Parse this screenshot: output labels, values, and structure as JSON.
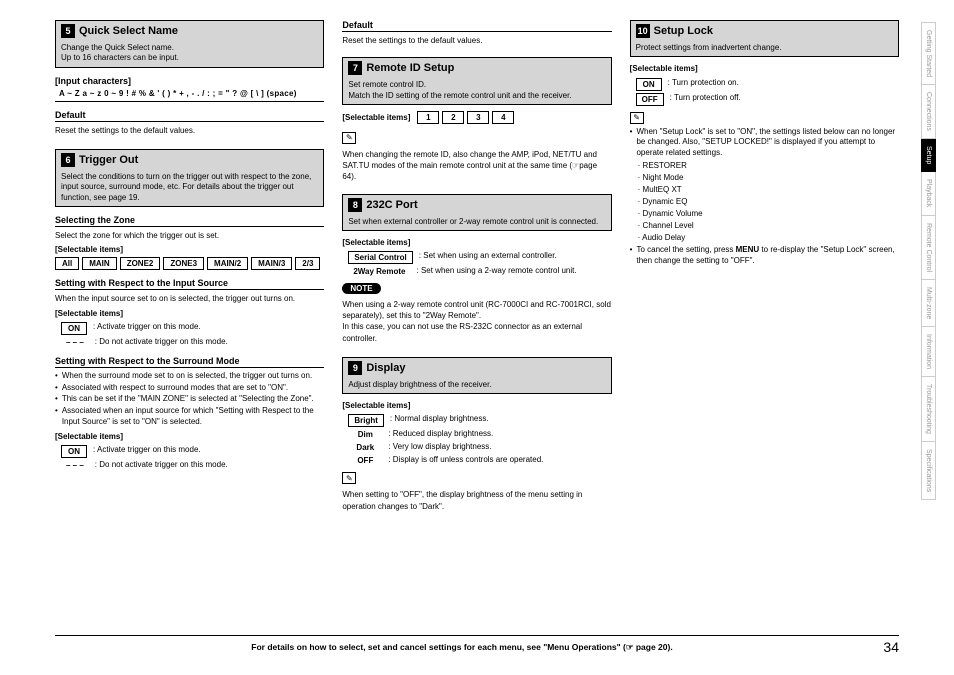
{
  "page_number": "34",
  "footer_text": "For details on how to select, set and cancel settings for each menu, see \"Menu Operations\" (☞ page 20).",
  "side_tabs": [
    "Getting Started",
    "Connections",
    "Setup",
    "Playback",
    "Remote Control",
    "Multi-zone",
    "Information",
    "Troubleshooting",
    "Specifications"
  ],
  "active_tab_index": 2,
  "col1": {
    "s5": {
      "num": "5",
      "title": "Quick Select Name",
      "desc": "Change the Quick Select name.\nUp to 16 characters can be input.",
      "input_chars_label": "[Input characters]",
      "input_chars": "A ~ Z   a ~ z   0 ~ 9   ! # % & ' ( ) * + , - . / : ; = \" ? @ [ \\ ] (space)",
      "default_label": "Default",
      "default_text": "Reset the settings to the default values."
    },
    "s6": {
      "num": "6",
      "title": "Trigger Out",
      "desc": "Select the conditions to turn on the trigger out with respect to the zone, input source, surround mode, etc. For details about the trigger out function, see page 19.",
      "zone_heading": "Selecting the Zone",
      "zone_text": "Select the zone for which the trigger out is set.",
      "sel_label": "[Selectable items]",
      "zone_items": [
        "All",
        "MAIN",
        "ZONE2",
        "ZONE3",
        "MAIN/2",
        "MAIN/3",
        "2/3"
      ],
      "input_heading": "Setting with Respect to the Input Source",
      "input_text": "When the input source set to on is selected, the trigger out turns on.",
      "on_label": "ON",
      "on_text": ": Activate trigger on this mode.",
      "dash_label": "– – –",
      "dash_text": ": Do not activate trigger on this mode.",
      "surround_heading": "Setting with Respect to the Surround Mode",
      "surround_bullets": [
        "When the surround mode set to on is selected, the trigger out turns on.",
        "Associated with respect to surround modes that are set to \"ON\".",
        "This can be set if the \"MAIN ZONE\" is selected at \"Selecting the Zone\".",
        "Associated when an input source for which \"Setting with Respect to the Input Source\" is set to \"ON\" is selected."
      ]
    }
  },
  "col2": {
    "default_label": "Default",
    "default_text": "Reset the settings to the default values.",
    "s7": {
      "num": "7",
      "title": "Remote ID Setup",
      "desc": "Set remote control ID.\nMatch the ID setting of the remote control unit and the receiver.",
      "sel_label": "[Selectable items]",
      "items": [
        "1",
        "2",
        "3",
        "4"
      ],
      "note": "When changing the remote ID, also change the AMP, iPod, NET/TU and SAT.TU modes of the main remote control unit at the same time (☞page 64)."
    },
    "s8": {
      "num": "8",
      "title": "232C Port",
      "desc": "Set when external controller or 2-way remote control unit is connected.",
      "sel_label": "[Selectable items]",
      "serial_label": "Serial Control",
      "serial_text": ":  Set when using an external controller.",
      "tworay_label": "2Way Remote",
      "tworay_text": ":  Set when using a 2-way remote control unit.",
      "note_label": "NOTE",
      "note_text": "When using a 2-way remote control unit (RC-7000CI and RC-7001RCI, sold separately), set this to \"2Way Remote\".\nIn this case, you can not use the RS-232C connector as an external controller."
    },
    "s9": {
      "num": "9",
      "title": "Display",
      "desc": "Adjust display brightness of the receiver.",
      "sel_label": "[Selectable items]",
      "rows": [
        {
          "k": "Bright",
          "v": ":  Normal display brightness."
        },
        {
          "k": "Dim",
          "v": ":  Reduced display brightness."
        },
        {
          "k": "Dark",
          "v": ":  Very low display brightness."
        },
        {
          "k": "OFF",
          "v": ":  Display is off unless controls are operated."
        }
      ],
      "note": "When setting to \"OFF\", the display brightness of the menu setting in operation changes to \"Dark\"."
    }
  },
  "col3": {
    "s10": {
      "num": "10",
      "title": "Setup Lock",
      "desc": "Protect settings from inadvertent change.",
      "sel_label": "[Selectable items]",
      "on_label": "ON",
      "on_text": ": Turn protection on.",
      "off_label": "OFF",
      "off_text": ": Turn protection off.",
      "bullet1": "When \"Setup Lock\" is set to \"ON\", the settings listed below can no longer be changed. Also, \"SETUP LOCKED!\" is displayed if you attempt to operate related settings.",
      "locked_items": [
        "RESTORER",
        "Night Mode",
        "MultEQ XT",
        "Dynamic EQ",
        "Dynamic Volume",
        "Channel Level",
        "Audio Delay"
      ],
      "bullet2_pre": "To cancel the setting, press ",
      "bullet2_bold": "MENU",
      "bullet2_post": " to re-display the \"Setup Lock\" screen, then change the setting to \"OFF\"."
    }
  }
}
